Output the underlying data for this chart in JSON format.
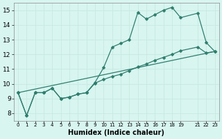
{
  "title": "",
  "xlabel": "Humidex (Indice chaleur)",
  "bg_color": "#d8f5f0",
  "grid_color": "#c8e8e0",
  "line_color": "#2e7d6e",
  "xlim": [
    -0.5,
    23.5
  ],
  "ylim": [
    7.5,
    15.5
  ],
  "yticks": [
    8,
    9,
    10,
    11,
    12,
    13,
    14,
    15
  ],
  "xtick_positions": [
    0,
    1,
    2,
    3,
    4,
    5,
    6,
    7,
    8,
    9,
    10,
    11,
    12,
    13,
    14,
    15,
    16,
    17,
    18,
    19,
    21,
    22,
    23
  ],
  "xtick_labels": [
    "0",
    "1",
    "2",
    "3",
    "4",
    "5",
    "6",
    "7",
    "8",
    "9",
    "10",
    "11",
    "12",
    "13",
    "14",
    "15",
    "16",
    "17",
    "18",
    "19",
    "21",
    "22",
    "23"
  ],
  "line1_x": [
    0,
    1,
    2,
    3,
    4,
    5,
    6,
    7,
    8,
    9,
    10,
    11,
    12,
    13,
    14,
    15,
    16,
    17,
    18,
    19,
    21,
    22,
    23
  ],
  "line1_y": [
    9.4,
    7.85,
    9.4,
    9.4,
    9.7,
    9.0,
    9.1,
    9.3,
    9.4,
    10.1,
    11.1,
    12.5,
    12.75,
    13.0,
    14.85,
    14.4,
    14.7,
    15.0,
    15.2,
    14.5,
    14.8,
    12.8,
    12.2
  ],
  "line2_x": [
    0,
    1,
    2,
    3,
    4,
    5,
    6,
    7,
    8,
    9,
    10,
    11,
    12,
    13,
    14,
    15,
    16,
    17,
    18,
    19,
    21,
    22,
    23
  ],
  "line2_y": [
    9.4,
    7.85,
    9.4,
    9.4,
    9.7,
    9.0,
    9.1,
    9.3,
    9.4,
    10.05,
    10.3,
    10.5,
    10.65,
    10.9,
    11.15,
    11.35,
    11.6,
    11.8,
    12.0,
    12.25,
    12.5,
    12.1,
    12.2
  ],
  "line3_x": [
    0,
    23
  ],
  "line3_y": [
    9.4,
    12.2
  ]
}
